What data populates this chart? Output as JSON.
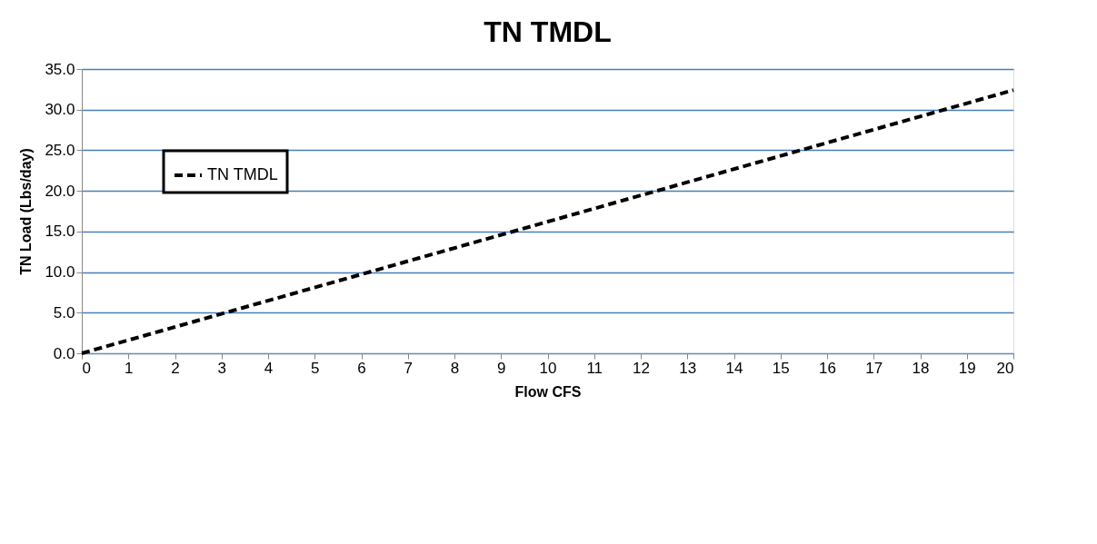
{
  "chart_data": {
    "type": "line",
    "title": "TN TMDL",
    "xlabel": "Flow CFS",
    "ylabel": "TN Load (Lbs/day)",
    "x": [
      0,
      20
    ],
    "series": [
      {
        "name": "TN TMDL",
        "color": "#000000",
        "values": [
          0.0,
          32.4
        ]
      }
    ],
    "xlim": [
      0,
      20
    ],
    "xticks": [
      0,
      1,
      2,
      3,
      4,
      5,
      6,
      7,
      8,
      9,
      10,
      11,
      12,
      13,
      14,
      15,
      16,
      17,
      18,
      19,
      20
    ],
    "ylim": [
      0,
      35
    ],
    "yticks": [
      {
        "value": 0,
        "label": "0.0"
      },
      {
        "value": 5,
        "label": "5.0"
      },
      {
        "value": 10,
        "label": "10.0"
      },
      {
        "value": 15,
        "label": "15.0"
      },
      {
        "value": 20,
        "label": "20.0"
      },
      {
        "value": 25,
        "label": "25.0"
      },
      {
        "value": 30,
        "label": "30.0"
      },
      {
        "value": 35,
        "label": "35.0"
      }
    ],
    "grid": "y",
    "legend": "top left",
    "line_style": "dashed",
    "marker": "none"
  }
}
